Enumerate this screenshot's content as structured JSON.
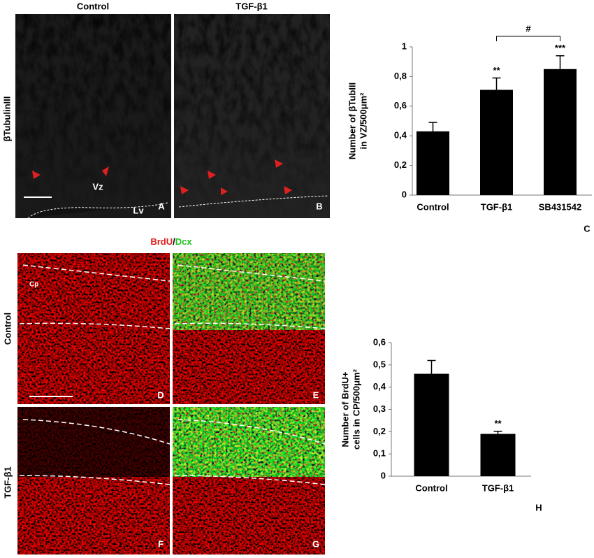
{
  "micrographs": {
    "column_titles": [
      "Control",
      "TGF-β1"
    ],
    "row_label": "βTubulinIII",
    "stain_1": "BrdU",
    "separator": "/",
    "stain_2": "Dcx",
    "row_labels": [
      "Control",
      "TGF-β1"
    ],
    "annotations": {
      "vz": "Vz",
      "lv": "Lv",
      "cp": "Cp"
    },
    "letters": [
      "A",
      "B",
      "D",
      "E",
      "F",
      "G"
    ]
  },
  "chart_data": [
    {
      "type": "bar",
      "panel_letter": "C",
      "y_label": [
        "Number of βTubIII",
        "in VZ/500μm²"
      ],
      "categories": [
        "Control",
        "TGF-β1",
        "SB431542"
      ],
      "values": [
        0.43,
        0.71,
        0.85
      ],
      "errors": [
        0.06,
        0.08,
        0.09
      ],
      "value_annotations": [
        null,
        "**",
        "***"
      ],
      "bracket": "#",
      "color": "#000000",
      "ylim": [
        0,
        1
      ],
      "yticks": [
        0,
        {
          "value": 0.2,
          "label": "0,2"
        },
        {
          "value": 0.4,
          "label": "0,4"
        },
        {
          "value": 0.6,
          "label": "0,6"
        },
        {
          "value": 0.8,
          "label": "0,8"
        },
        1
      ]
    },
    {
      "type": "bar",
      "panel_letter": "H",
      "y_label": [
        "Number of BrdU+",
        "cells  in CP/500μm²"
      ],
      "categories": [
        "Control",
        "TGF-β1"
      ],
      "values": [
        0.46,
        0.19
      ],
      "errors": [
        0.06,
        0.012
      ],
      "value_annotations": [
        null,
        "**"
      ],
      "color": "#000000",
      "ylim": [
        0,
        0.6
      ],
      "yticks": [
        0,
        {
          "value": 0.1,
          "label": "0,1"
        },
        {
          "value": 0.2,
          "label": "0,2"
        },
        {
          "value": 0.3,
          "label": "0,3"
        },
        {
          "value": 0.4,
          "label": "0,4"
        },
        {
          "value": 0.5,
          "label": "0,5"
        },
        {
          "value": 0.6,
          "label": "0,6"
        }
      ]
    }
  ]
}
